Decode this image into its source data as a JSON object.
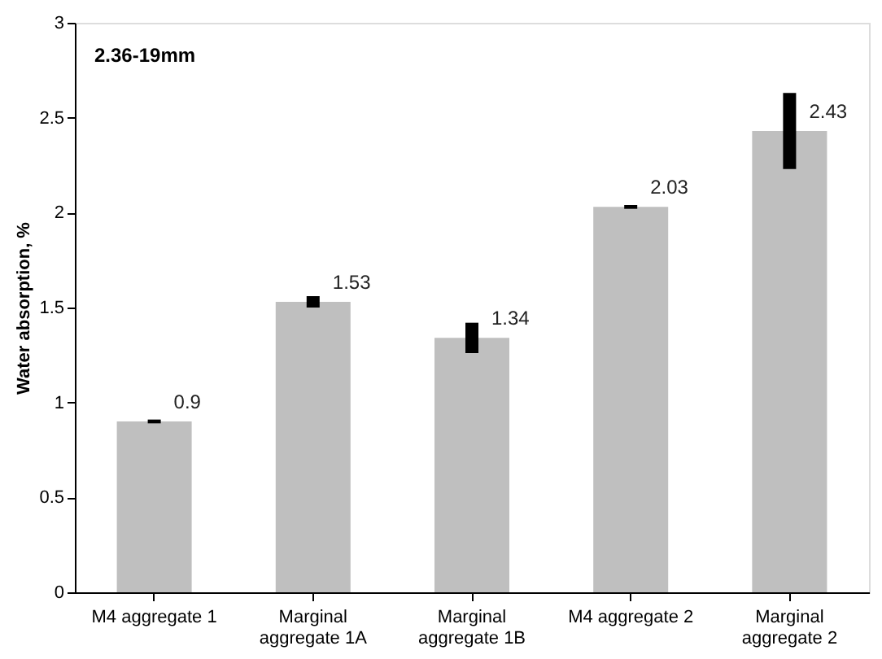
{
  "chart_data": {
    "type": "bar",
    "categories": [
      "M4 aggregate 1",
      "Marginal aggregate 1A",
      "Marginal aggregate 1B",
      "M4 aggregate 2",
      "Marginal aggregate 2"
    ],
    "values": [
      0.9,
      1.53,
      1.34,
      2.03,
      2.43
    ],
    "errors": [
      0.01,
      0.03,
      0.08,
      0.01,
      0.2
    ],
    "color": "#bfbfbf",
    "ylabel": "Water absorption, %",
    "ylim": [
      0,
      3
    ],
    "yticks": [
      0,
      0.5,
      1,
      1.5,
      2,
      2.5,
      3
    ],
    "annotations": [
      "2.36-19mm"
    ],
    "data_labels": true,
    "grid": false
  }
}
